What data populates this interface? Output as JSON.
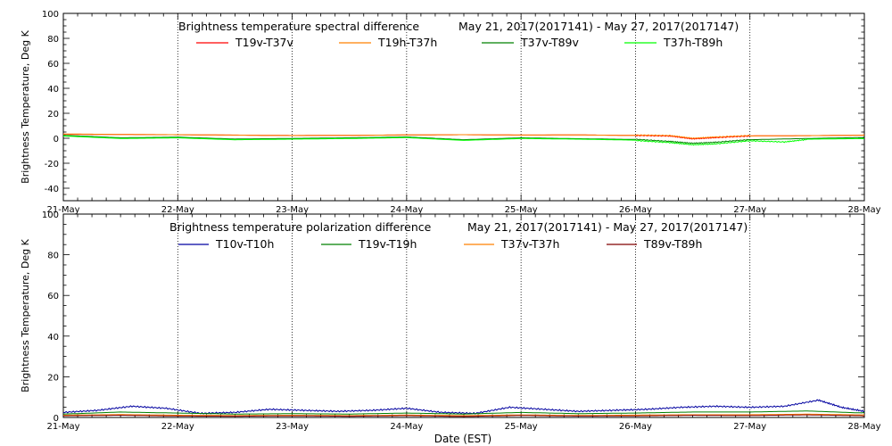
{
  "x_axis_label": "Date (EST)",
  "chart_data": [
    {
      "type": "line",
      "title": "Brightness temperature spectral difference",
      "subtitle": "May 21, 2017(2017141) - May 27, 2017(2017147)",
      "ylabel": "Brightness Temperature, Deg K",
      "xlabel": "",
      "xlim": [
        0,
        7
      ],
      "ylim": [
        -50,
        100
      ],
      "yticks": [
        -40,
        -20,
        0,
        20,
        40,
        60,
        80,
        100
      ],
      "xtick_labels": [
        "21-May",
        "22-May",
        "23-May",
        "24-May",
        "25-May",
        "26-May",
        "27-May",
        "28-May"
      ],
      "grid": true,
      "legend_position": "top",
      "series": [
        {
          "name": "T19v-T37v",
          "color": "#ff0000",
          "points": [
            [
              0,
              3.2
            ],
            [
              0.5,
              3.0
            ],
            [
              1,
              2.8
            ],
            [
              1.5,
              2.5
            ],
            [
              2,
              2.2
            ],
            [
              2.5,
              2.3
            ],
            [
              3,
              2.6
            ],
            [
              3.5,
              2.8
            ],
            [
              4,
              2.5
            ],
            [
              4.5,
              2.6
            ],
            [
              5,
              2.2
            ],
            [
              5.3,
              1.8
            ],
            [
              5.5,
              -0.5
            ],
            [
              5.7,
              0.5
            ],
            [
              6,
              1.8
            ],
            [
              6.5,
              2.0
            ],
            [
              7,
              2.4
            ]
          ]
        },
        {
          "name": "T19h-T37h",
          "color": "#ff8000",
          "points": [
            [
              0,
              3.8
            ],
            [
              0.5,
              3.4
            ],
            [
              1,
              3.2
            ],
            [
              1.5,
              2.9
            ],
            [
              2,
              2.5
            ],
            [
              2.5,
              2.7
            ],
            [
              3,
              3.0
            ],
            [
              3.5,
              3.2
            ],
            [
              4,
              2.9
            ],
            [
              4.5,
              3.0
            ],
            [
              5,
              2.6
            ],
            [
              5.3,
              2.2
            ],
            [
              5.5,
              0.0
            ],
            [
              5.7,
              1.0
            ],
            [
              6,
              2.2
            ],
            [
              6.5,
              2.4
            ],
            [
              7,
              2.8
            ]
          ]
        },
        {
          "name": "T37v-T89v",
          "color": "#008000",
          "points": [
            [
              0,
              2.5
            ],
            [
              0.5,
              0.5
            ],
            [
              1,
              1.0
            ],
            [
              1.5,
              -0.5
            ],
            [
              2,
              0.0
            ],
            [
              2.5,
              0.5
            ],
            [
              3,
              1.2
            ],
            [
              3.5,
              -1.0
            ],
            [
              4,
              0.5
            ],
            [
              4.5,
              -0.2
            ],
            [
              5,
              -0.8
            ],
            [
              5.3,
              -2.5
            ],
            [
              5.5,
              -4.0
            ],
            [
              5.7,
              -3.2
            ],
            [
              6,
              -1.0
            ],
            [
              6.5,
              0.0
            ],
            [
              7,
              0.8
            ]
          ]
        },
        {
          "name": "T37h-T89h",
          "color": "#00ff00",
          "points": [
            [
              0,
              1.5
            ],
            [
              0.5,
              -0.5
            ],
            [
              1,
              0.0
            ],
            [
              1.5,
              -1.5
            ],
            [
              2,
              -1.0
            ],
            [
              2.5,
              -0.5
            ],
            [
              3,
              0.2
            ],
            [
              3.5,
              -2.0
            ],
            [
              4,
              -0.5
            ],
            [
              4.5,
              -1.0
            ],
            [
              5,
              -1.8
            ],
            [
              5.3,
              -3.5
            ],
            [
              5.5,
              -5.2
            ],
            [
              5.7,
              -4.5
            ],
            [
              6,
              -2.0
            ],
            [
              6.3,
              -3.0
            ],
            [
              6.5,
              -1.0
            ],
            [
              7,
              -0.5
            ]
          ]
        }
      ]
    },
    {
      "type": "line",
      "title": "Brightness temperature polarization difference",
      "subtitle": "May 21, 2017(2017141) - May 27, 2017(2017147)",
      "ylabel": "Brightness Temperature, Deg K",
      "xlabel": "Date (EST)",
      "xlim": [
        0,
        7
      ],
      "ylim": [
        0,
        100
      ],
      "yticks": [
        0,
        20,
        40,
        60,
        80,
        100
      ],
      "xtick_labels": [
        "21-May",
        "22-May",
        "23-May",
        "24-May",
        "25-May",
        "26-May",
        "27-May",
        "28-May"
      ],
      "grid": true,
      "legend_position": "top",
      "series": [
        {
          "name": "T10v-T10h",
          "color": "#0000a0",
          "points": [
            [
              0,
              2.5
            ],
            [
              0.3,
              3.5
            ],
            [
              0.6,
              5.5
            ],
            [
              0.9,
              4.5
            ],
            [
              1.2,
              2.0
            ],
            [
              1.5,
              2.5
            ],
            [
              1.8,
              4.0
            ],
            [
              2.1,
              3.5
            ],
            [
              2.4,
              3.0
            ],
            [
              2.7,
              3.5
            ],
            [
              3.0,
              4.5
            ],
            [
              3.3,
              2.5
            ],
            [
              3.6,
              2.0
            ],
            [
              3.9,
              5.0
            ],
            [
              4.2,
              4.0
            ],
            [
              4.5,
              3.0
            ],
            [
              4.8,
              3.5
            ],
            [
              5.1,
              4.0
            ],
            [
              5.4,
              5.0
            ],
            [
              5.7,
              5.5
            ],
            [
              6.0,
              5.0
            ],
            [
              6.3,
              5.5
            ],
            [
              6.6,
              8.5
            ],
            [
              6.8,
              5.0
            ],
            [
              7,
              3.0
            ]
          ]
        },
        {
          "name": "T19v-T19h",
          "color": "#008000",
          "points": [
            [
              0,
              2.0
            ],
            [
              0.5,
              3.0
            ],
            [
              1,
              2.5
            ],
            [
              1.5,
              2.0
            ],
            [
              2,
              2.2
            ],
            [
              2.5,
              2.0
            ],
            [
              3,
              2.5
            ],
            [
              3.5,
              2.0
            ],
            [
              4,
              2.8
            ],
            [
              4.5,
              2.2
            ],
            [
              5,
              2.5
            ],
            [
              5.5,
              3.0
            ],
            [
              6,
              3.0
            ],
            [
              6.5,
              3.5
            ],
            [
              7,
              2.5
            ]
          ]
        },
        {
          "name": "T37v-T37h",
          "color": "#ff8000",
          "points": [
            [
              0,
              1.2
            ],
            [
              0.5,
              1.5
            ],
            [
              1,
              1.2
            ],
            [
              1.5,
              1.0
            ],
            [
              2,
              1.2
            ],
            [
              2.5,
              1.0
            ],
            [
              3,
              1.3
            ],
            [
              3.5,
              1.0
            ],
            [
              4,
              1.4
            ],
            [
              4.5,
              1.1
            ],
            [
              5,
              1.3
            ],
            [
              5.5,
              1.5
            ],
            [
              6,
              1.5
            ],
            [
              6.5,
              1.8
            ],
            [
              7,
              1.4
            ]
          ]
        },
        {
          "name": "T89v-T89h",
          "color": "#800000",
          "points": [
            [
              0,
              0.5
            ],
            [
              0.5,
              0.8
            ],
            [
              1,
              0.4
            ],
            [
              1.5,
              0.3
            ],
            [
              2,
              0.5
            ],
            [
              2.5,
              0.3
            ],
            [
              3,
              0.6
            ],
            [
              3.5,
              0.2
            ],
            [
              4,
              0.7
            ],
            [
              4.5,
              0.4
            ],
            [
              5,
              0.5
            ],
            [
              5.5,
              0.8
            ],
            [
              6,
              0.7
            ],
            [
              6.5,
              1.0
            ],
            [
              7,
              0.6
            ]
          ]
        }
      ]
    }
  ]
}
